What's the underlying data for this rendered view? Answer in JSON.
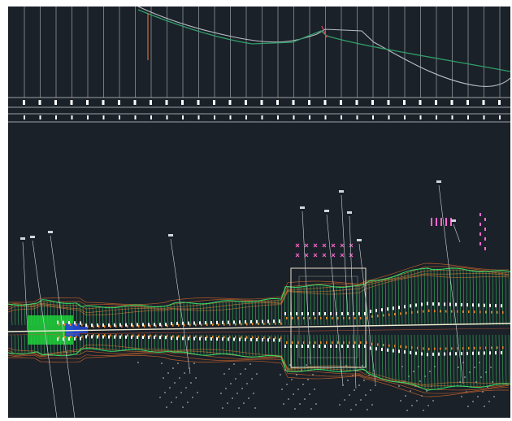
{
  "app": {
    "type": "CAD drawing viewport",
    "background_color": "#1b2129"
  },
  "profile_view": {
    "grid_line_color": "#c8cdd2",
    "existing_ground_color": "#b9bec4",
    "design_profile_color": "#2f9e6a",
    "vertical_curve_color": "#e0733a",
    "band_marker_color": "#ffffff"
  },
  "plan_view": {
    "alignment_color": "#f3ecd2",
    "slope_hatch_color": "#35e06a",
    "contour_color": "#d96a2a",
    "structure_color": "#ff6ad0",
    "fill_block_color": "#1fd13a",
    "accent_block_color": "#2448d8",
    "station_labels": [
      "",
      "",
      "",
      "",
      "",
      "",
      "",
      "",
      "",
      "",
      ""
    ]
  },
  "icons": [
    "leader-line",
    "station-tick",
    "elevation-point"
  ]
}
